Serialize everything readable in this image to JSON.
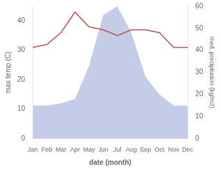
{
  "chart_data": {
    "type": "line",
    "categories": [
      "Jan",
      "Feb",
      "Mar",
      "Apr",
      "May",
      "Jun",
      "Jul",
      "Aug",
      "Sep",
      "Oct",
      "Nov",
      "Dec"
    ],
    "series": [
      {
        "type": "area",
        "axis": "y2",
        "color": "#c5cce8",
        "values": [
          15,
          15,
          16,
          18,
          33,
          56,
          60,
          48,
          28,
          20,
          15,
          15
        ]
      },
      {
        "type": "line",
        "color": "#c0504d",
        "values": [
          31,
          32,
          36,
          43,
          38,
          37,
          35,
          37,
          37,
          36,
          31,
          31
        ]
      }
    ],
    "xlabel": "date (month)",
    "ylabel": "max temp (C)",
    "y2label": "med. precipitation (kg/m2)",
    "ylim": [
      0,
      45
    ],
    "yticks": [
      0,
      10,
      20,
      30,
      40
    ],
    "y2lim": [
      0,
      60
    ],
    "y2ticks": [
      0,
      10,
      20,
      30,
      40,
      50,
      60
    ],
    "grid": false
  }
}
